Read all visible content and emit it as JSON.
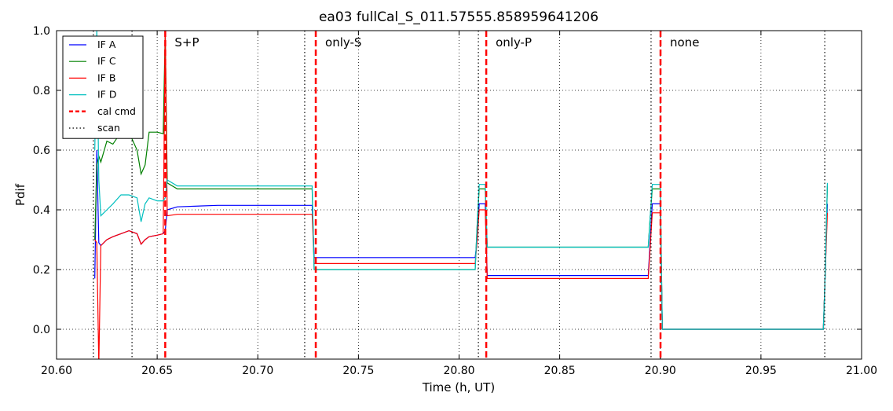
{
  "chart_data": {
    "type": "line",
    "title": "ea03 fullCal_S_011.57555.858959641206",
    "x_label": "Time (h, UT)",
    "y_label": "Pdif",
    "xlim": [
      20.6,
      21.0
    ],
    "xticks": [
      {
        "value": 20.6,
        "label": "20.60"
      },
      {
        "value": 20.65,
        "label": "20.65"
      },
      {
        "value": 20.7,
        "label": "20.70"
      },
      {
        "value": 20.75,
        "label": "20.75"
      },
      {
        "value": 20.8,
        "label": "20.80"
      },
      {
        "value": 20.85,
        "label": "20.85"
      },
      {
        "value": 20.9,
        "label": "20.90"
      },
      {
        "value": 20.95,
        "label": "20.95"
      },
      {
        "value": 21.0,
        "label": "21.00"
      }
    ],
    "ylim": [
      -0.1,
      1.0
    ],
    "yticks": [
      {
        "value": 0.0,
        "label": "0.0"
      },
      {
        "value": 0.2,
        "label": "0.2"
      },
      {
        "value": 0.4,
        "label": "0.4"
      },
      {
        "value": 0.6,
        "label": "0.6"
      },
      {
        "value": 0.8,
        "label": "0.8"
      },
      {
        "value": 1.0,
        "label": "1.0"
      }
    ],
    "grid": true,
    "legend": "upper left",
    "x": [
      20.619,
      20.62,
      20.621,
      20.622,
      20.625,
      20.628,
      20.632,
      20.636,
      20.64,
      20.642,
      20.644,
      20.646,
      20.65,
      20.653,
      20.654,
      20.655,
      20.66,
      20.68,
      20.7,
      20.72,
      20.727,
      20.728,
      20.73,
      20.75,
      20.77,
      20.79,
      20.808,
      20.809,
      20.81,
      20.812,
      20.813,
      20.814,
      20.83,
      20.85,
      20.87,
      20.894,
      20.895,
      20.896,
      20.899,
      20.9,
      20.901,
      20.92,
      20.94,
      20.96,
      20.981,
      20.982,
      20.983
    ],
    "series": [
      {
        "name": "IF A",
        "color": "#0000ff",
        "values": [
          0.17,
          0.6,
          0.29,
          0.28,
          0.3,
          0.31,
          0.32,
          0.33,
          0.32,
          0.285,
          0.3,
          0.31,
          0.315,
          0.32,
          0.33,
          0.4,
          0.41,
          0.415,
          0.415,
          0.415,
          0.415,
          0.24,
          0.24,
          0.24,
          0.24,
          0.24,
          0.24,
          0.3,
          0.42,
          0.42,
          0.42,
          0.18,
          0.18,
          0.18,
          0.18,
          0.18,
          0.3,
          0.42,
          0.42,
          0.42,
          0.0,
          0.0,
          0.0,
          0.0,
          0.0,
          0.2,
          0.42
        ]
      },
      {
        "name": "IF C",
        "color": "#008000",
        "values": [
          0.3,
          0.55,
          0.58,
          0.56,
          0.63,
          0.62,
          0.66,
          0.66,
          0.6,
          0.52,
          0.55,
          0.66,
          0.66,
          0.655,
          1.0,
          0.49,
          0.47,
          0.47,
          0.47,
          0.47,
          0.47,
          0.2,
          0.2,
          0.2,
          0.2,
          0.2,
          0.2,
          0.35,
          0.47,
          0.47,
          0.47,
          0.275,
          0.275,
          0.275,
          0.275,
          0.275,
          0.38,
          0.47,
          0.47,
          0.47,
          0.0,
          0.0,
          0.0,
          0.0,
          0.0,
          0.2,
          0.48
        ]
      },
      {
        "name": "IF B",
        "color": "#ff0000",
        "values": [
          0.3,
          0.29,
          -0.12,
          0.28,
          0.3,
          0.31,
          0.32,
          0.33,
          0.32,
          0.285,
          0.3,
          0.31,
          0.315,
          0.32,
          1.0,
          0.38,
          0.385,
          0.385,
          0.385,
          0.385,
          0.385,
          0.22,
          0.22,
          0.22,
          0.22,
          0.22,
          0.22,
          0.3,
          0.4,
          0.4,
          0.4,
          0.17,
          0.17,
          0.17,
          0.17,
          0.17,
          0.28,
          0.39,
          0.39,
          0.39,
          0.0,
          0.0,
          0.0,
          0.0,
          0.0,
          0.2,
          0.39
        ]
      },
      {
        "name": "IF D",
        "color": "#00bfbf",
        "values": [
          0.6,
          1.0,
          0.5,
          0.38,
          0.4,
          0.42,
          0.45,
          0.45,
          0.44,
          0.36,
          0.42,
          0.44,
          0.43,
          0.43,
          0.44,
          0.5,
          0.48,
          0.48,
          0.48,
          0.48,
          0.48,
          0.2,
          0.2,
          0.2,
          0.2,
          0.2,
          0.2,
          0.35,
          0.485,
          0.485,
          0.485,
          0.275,
          0.275,
          0.275,
          0.275,
          0.275,
          0.38,
          0.485,
          0.485,
          0.485,
          0.0,
          0.0,
          0.0,
          0.0,
          0.0,
          0.2,
          0.49
        ]
      }
    ],
    "cal_cmd": {
      "name": "cal cmd",
      "color": "#ff0000",
      "x": [
        20.654,
        20.7288,
        20.8135,
        20.9001
      ]
    },
    "scan": {
      "name": "scan",
      "color": "#000000",
      "x": [
        20.6183,
        20.6375,
        20.7233,
        20.8096,
        20.8954,
        20.9817
      ]
    },
    "annotations": [
      "S+P",
      "only-S",
      "only-P",
      "none"
    ],
    "annotation_color": "#ff0000"
  }
}
